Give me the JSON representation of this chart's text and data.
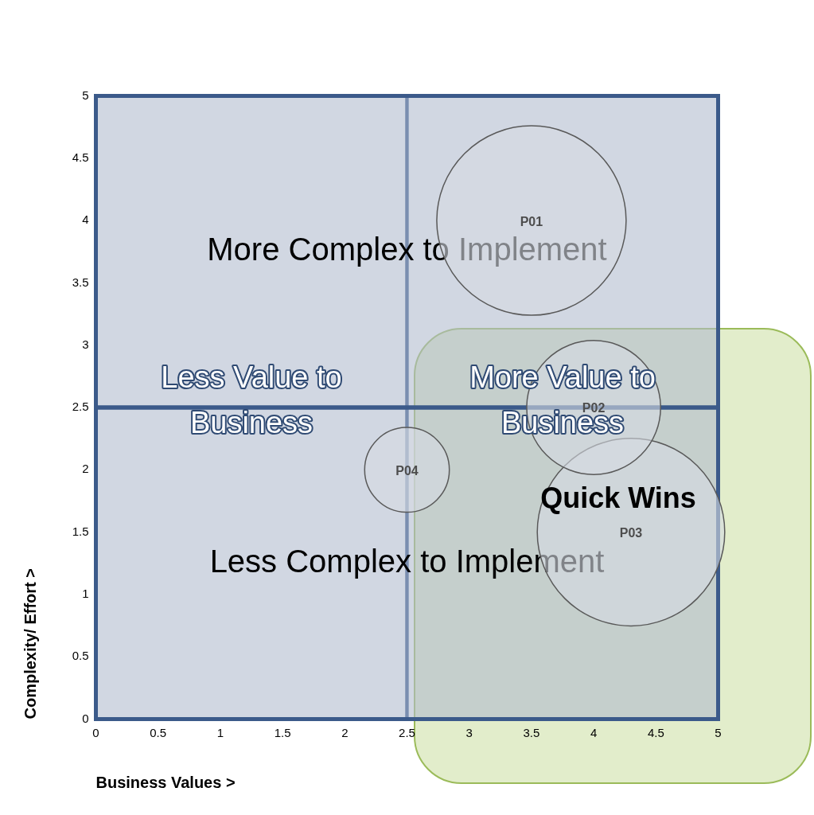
{
  "chart_data": {
    "type": "bubble",
    "xlabel": "Business Values >",
    "ylabel": "Complexity/ Effort >",
    "xlim": [
      0,
      5
    ],
    "ylim": [
      0,
      5
    ],
    "xticks": [
      0,
      0.5,
      1,
      1.5,
      2,
      2.5,
      3,
      3.5,
      4,
      4.5,
      5
    ],
    "yticks": [
      0,
      0.5,
      1,
      1.5,
      2,
      2.5,
      3,
      3.5,
      4,
      4.5,
      5
    ],
    "grid": false,
    "legend": false,
    "series": [
      {
        "name": "P01",
        "color": "#d6dae3",
        "x": [
          3.5
        ],
        "values": [
          4
        ],
        "sizes": [
          1
        ]
      },
      {
        "name": "P02",
        "color": "#d6dae3",
        "x": [
          4
        ],
        "values": [
          2.5
        ],
        "sizes": [
          0.5
        ]
      },
      {
        "name": "P03",
        "color": "#d6dae3",
        "x": [
          4.3
        ],
        "values": [
          1.5
        ],
        "sizes": [
          0.98
        ]
      },
      {
        "name": "P04",
        "color": "#d6dae3",
        "x": [
          2.5
        ],
        "values": [
          2
        ],
        "sizes": [
          0.2
        ]
      }
    ],
    "bands": [
      {
        "axis": "x",
        "from": 0,
        "to": 2.5,
        "label": "Less Value to Business",
        "color": "#c3cad8"
      },
      {
        "axis": "x",
        "from": 2.5,
        "to": 5,
        "label": "More Value to Business",
        "color": "#c3cad8"
      },
      {
        "axis": "y",
        "from": 2.5,
        "to": 5,
        "label": "More Complex to Implement",
        "color": "#3b5a8a"
      },
      {
        "axis": "y",
        "from": 0,
        "to": 2.5,
        "label": "Less Complex to Implement",
        "color": "#3b5a8a"
      }
    ],
    "annotations": [
      "Quick Wins"
    ]
  }
}
